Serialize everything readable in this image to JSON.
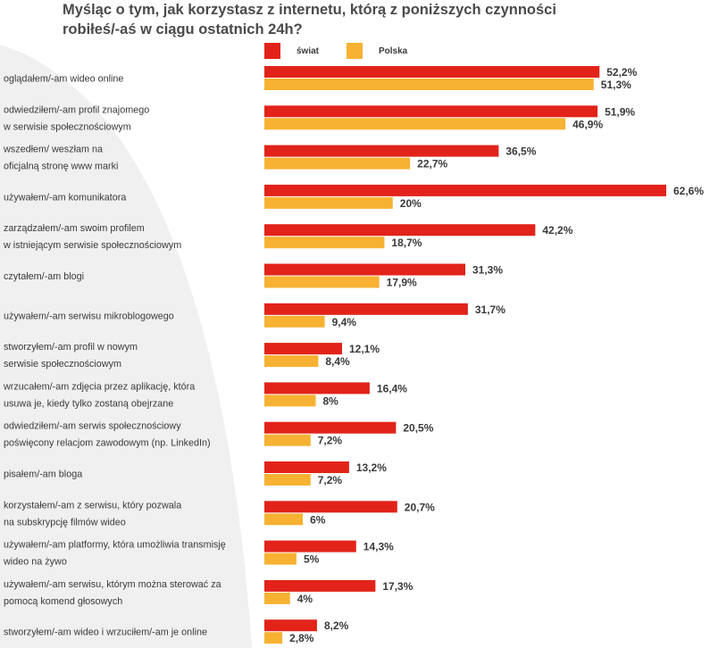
{
  "chart_data": {
    "type": "bar",
    "orientation": "horizontal",
    "title_lines": [
      "Myśląc o tym, jak korzystasz z internetu, którą z poniższych czynności",
      "robiłeś/-aś w ciągu ostatnich 24h?"
    ],
    "series": [
      {
        "name": "świat",
        "color": "#e2231a",
        "values": [
          52.2,
          51.9,
          36.5,
          62.6,
          42.2,
          31.3,
          31.7,
          12.1,
          16.4,
          20.5,
          13.2,
          20.7,
          14.3,
          17.3,
          8.2
        ],
        "labels": [
          "52,2%",
          "51,9%",
          "36,5%",
          "62,6%",
          "42,2%",
          "31,3%",
          "31,7%",
          "12,1%",
          "16,4%",
          "20,5%",
          "13,2%",
          "20,7%",
          "14,3%",
          "17,3%",
          "8,2%"
        ]
      },
      {
        "name": "Polska",
        "color": "#f7b233",
        "values": [
          51.3,
          46.9,
          22.7,
          20,
          18.7,
          17.9,
          9.4,
          8.4,
          8,
          7.2,
          7.2,
          6,
          5,
          4,
          2.8
        ],
        "labels": [
          "51,3%",
          "46,9%",
          "22,7%",
          "20%",
          "18,7%",
          "17,9%",
          "9,4%",
          "8,4%",
          "8%",
          "7,2%",
          "7,2%",
          "6%",
          "5%",
          "4%",
          "2,8%"
        ]
      }
    ],
    "categories": [
      [
        "oglądałem/-am wideo online"
      ],
      [
        "odwiedziłem/-am profil znajomego",
        "w serwisie społecznościowym"
      ],
      [
        "wszedłem/ weszłam na",
        "oficjalną stronę www marki"
      ],
      [
        "używałem/-am komunikatora"
      ],
      [
        "zarządzałem/-am swoim profilem",
        "w istniejącym serwisie społecznościowym"
      ],
      [
        "czytałem/-am blogi"
      ],
      [
        "używałem/-am serwisu mikroblogowego"
      ],
      [
        "stworzyłem/-am profil w nowym",
        "serwisie społecznościowym"
      ],
      [
        "wrzucałem/-am zdjęcia przez aplikację, która",
        "usuwa je, kiedy tylko zostaną obejrzane"
      ],
      [
        "odwiedziłem/-am serwis społecznościowy",
        "poświęcony relacjom zawodowym (np. LinkedIn)"
      ],
      [
        "pisałem/-am bloga"
      ],
      [
        "korzystałem/-am z serwisu, który pozwala",
        "na subskrypcję filmów wideo"
      ],
      [
        "używałem/-am platformy, która umożliwia transmisję",
        "wideo na żywo"
      ],
      [
        "używałem/-am serwisu, którym można sterować za",
        "pomocą komend głosowych"
      ],
      [
        "stworzyłem/-am wideo i wrzuciłem/-am je online"
      ]
    ],
    "xlim": [
      0,
      62.6
    ],
    "legend_position": "top"
  }
}
